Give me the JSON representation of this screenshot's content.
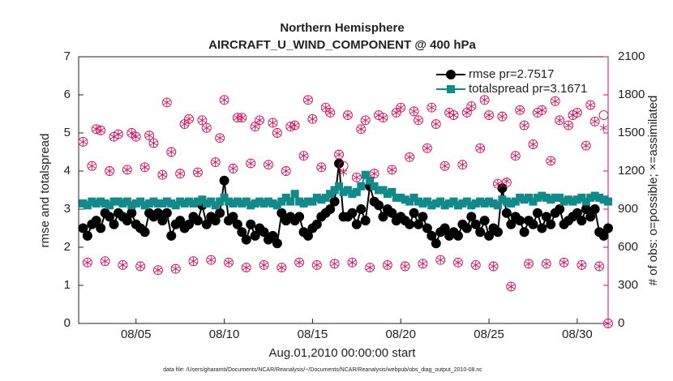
{
  "chart_data": {
    "type": "scatter",
    "title": "Northern Hemisphere",
    "subtitle": "AIRCRAFT_U_WIND_COMPONENT @ 400 hPa",
    "xlabel": "Aug.01,2010 00:00:00 start",
    "ylabel": "rmse and totalspread",
    "y2label": "# of obs: o=possible; ×=assimilated",
    "footnote": "data file: /Users/gharamti/Documents/NCAR/Reanalysis/~/Documents/NCAR/Reanalysis/webpub/obs_diag_output_2010-08.nc",
    "legend": "top-right",
    "grid": false,
    "xlim": [
      0.75,
      30.75
    ],
    "xticks": [
      {
        "value": 4,
        "label": "08/05"
      },
      {
        "value": 9,
        "label": "08/10"
      },
      {
        "value": 14,
        "label": "08/15"
      },
      {
        "value": 19,
        "label": "08/20"
      },
      {
        "value": 24,
        "label": "08/25"
      },
      {
        "value": 29,
        "label": "08/30"
      }
    ],
    "ylim": [
      0,
      7
    ],
    "yticks": [
      0,
      1,
      2,
      3,
      4,
      5,
      6,
      7
    ],
    "y2lim": [
      0,
      2100
    ],
    "y2ticks": [
      0,
      300,
      600,
      900,
      1200,
      1500,
      1800,
      2100
    ],
    "y2color": "#cc0f5f",
    "x": [
      1,
      1.25,
      1.5,
      1.75,
      2,
      2.25,
      2.5,
      2.75,
      3,
      3.25,
      3.5,
      3.75,
      4,
      4.25,
      4.5,
      4.75,
      5,
      5.25,
      5.5,
      5.75,
      6,
      6.25,
      6.5,
      6.75,
      7,
      7.25,
      7.5,
      7.75,
      8,
      8.25,
      8.5,
      8.75,
      9,
      9.25,
      9.5,
      9.75,
      10,
      10.25,
      10.5,
      10.75,
      11,
      11.25,
      11.5,
      11.75,
      12,
      12.25,
      12.5,
      12.75,
      13,
      13.25,
      13.5,
      13.75,
      14,
      14.25,
      14.5,
      14.75,
      15,
      15.25,
      15.5,
      15.75,
      16,
      16.25,
      16.5,
      16.75,
      17,
      17.25,
      17.5,
      17.75,
      18,
      18.25,
      18.5,
      18.75,
      19,
      19.25,
      19.5,
      19.75,
      20,
      20.25,
      20.5,
      20.75,
      21,
      21.25,
      21.5,
      21.75,
      22,
      22.25,
      22.5,
      22.75,
      23,
      23.25,
      23.5,
      23.75,
      24,
      24.25,
      24.5,
      24.75,
      25,
      25.25,
      25.5,
      25.75,
      26,
      26.25,
      26.5,
      26.75,
      27,
      27.25,
      27.5,
      27.75,
      28,
      28.25,
      28.5,
      28.75,
      29,
      29.25,
      29.5,
      29.75,
      30,
      30.25,
      30.5,
      30.75
    ],
    "series": [
      {
        "name": "rmse pr=2.7517",
        "color": "#000000",
        "marker": "circle",
        "line": true,
        "values": [
          2.5,
          2.3,
          2.6,
          2.7,
          2.5,
          2.9,
          2.8,
          2.6,
          2.9,
          2.8,
          2.7,
          2.9,
          2.6,
          2.5,
          2.4,
          2.9,
          2.8,
          2.9,
          2.7,
          2.9,
          2.3,
          2.6,
          2.7,
          2.5,
          2.6,
          2.8,
          2.7,
          3.1,
          2.6,
          2.8,
          2.7,
          2.9,
          3.75,
          2.7,
          2.8,
          2.6,
          2.4,
          2.2,
          2.6,
          2.3,
          2.5,
          2.4,
          2.2,
          2.3,
          2.1,
          2.9,
          2.7,
          2.8,
          2.7,
          2.8,
          2.4,
          2.3,
          2.5,
          2.6,
          2.8,
          2.9,
          3.0,
          3.2,
          4.2,
          2.8,
          2.8,
          2.9,
          2.6,
          3.0,
          2.7,
          3.6,
          3.2,
          3.1,
          2.8,
          3.0,
          2.9,
          2.7,
          2.8,
          2.7,
          2.6,
          2.9,
          2.6,
          2.8,
          2.5,
          2.3,
          2.1,
          2.4,
          2.5,
          2.3,
          2.4,
          2.3,
          2.6,
          2.5,
          2.8,
          2.6,
          2.4,
          2.7,
          2.3,
          2.5,
          2.4,
          3.55,
          2.9,
          2.6,
          2.8,
          2.7,
          2.4,
          2.7,
          2.6,
          2.9,
          2.5,
          2.8,
          2.6,
          2.9,
          3.0,
          2.6,
          2.7,
          2.8,
          2.9,
          2.7,
          3.0,
          2.8,
          3.0,
          2.4,
          2.3,
          2.5
        ]
      },
      {
        "name": "totalspread pr=3.1671",
        "color": "#138a8a",
        "marker": "square",
        "line": true,
        "values": [
          3.15,
          3.1,
          3.2,
          3.15,
          3.2,
          3.15,
          3.1,
          3.2,
          3.2,
          3.15,
          3.2,
          3.1,
          3.15,
          3.2,
          3.1,
          3.15,
          3.2,
          3.15,
          3.15,
          3.2,
          3.15,
          3.1,
          3.2,
          3.15,
          3.2,
          3.15,
          3.2,
          3.25,
          3.15,
          3.2,
          3.1,
          3.2,
          3.3,
          3.2,
          3.15,
          3.2,
          3.15,
          3.2,
          3.1,
          3.15,
          3.2,
          3.15,
          3.2,
          3.15,
          3.1,
          3.2,
          3.3,
          3.2,
          3.4,
          3.2,
          3.15,
          3.2,
          3.2,
          3.3,
          3.25,
          3.3,
          3.4,
          3.5,
          3.6,
          3.45,
          3.5,
          3.4,
          3.45,
          3.6,
          3.9,
          3.75,
          3.6,
          3.5,
          3.5,
          3.4,
          3.45,
          3.3,
          3.3,
          3.25,
          3.2,
          3.3,
          3.2,
          3.15,
          3.2,
          3.1,
          3.15,
          3.2,
          3.1,
          3.15,
          3.2,
          3.1,
          3.15,
          3.2,
          3.1,
          3.15,
          3.2,
          3.15,
          3.2,
          3.15,
          3.1,
          3.25,
          3.2,
          3.15,
          3.2,
          3.3,
          3.25,
          3.3,
          3.2,
          3.3,
          3.35,
          3.3,
          3.25,
          3.3,
          3.3,
          3.2,
          3.25,
          3.2,
          3.25,
          3.3,
          3.2,
          3.3,
          3.35,
          3.3,
          3.25,
          3.2
        ]
      },
      {
        "color": "#cc0f5f",
        "marker": "circle-open",
        "line": false,
        "axis": "y2",
        "values": [
          1430,
          480,
          1240,
          1530,
          1520,
          490,
          1200,
          1470,
          1490,
          460,
          1210,
          1500,
          1470,
          450,
          1230,
          1480,
          1420,
          420,
          1170,
          1740,
          1350,
          430,
          1180,
          1570,
          1610,
          490,
          1190,
          1600,
          1540,
          500,
          1270,
          1460,
          1760,
          480,
          1220,
          1620,
          1620,
          440,
          1260,
          1550,
          1600,
          460,
          1250,
          1580,
          1500,
          440,
          1200,
          1550,
          1560,
          480,
          1320,
          1760,
          1610,
          460,
          1230,
          1700,
          1660,
          470,
          1330,
          1240,
          1640,
          480,
          1150,
          1530,
          1600,
          440,
          1180,
          1640,
          1620,
          460,
          1210,
          1660,
          1700,
          450,
          1310,
          1670,
          1600,
          470,
          1380,
          1700,
          1570,
          500,
          1240,
          1660,
          1640,
          480,
          1250,
          1660,
          1710,
          460,
          1380,
          1760,
          1640,
          450,
          1100,
          1630,
          1110,
          290,
          1320,
          1680,
          1560,
          470,
          1410,
          1660,
          1680,
          470,
          1280,
          1750,
          1600,
          480,
          1560,
          1640,
          1660,
          460,
          1400,
          1720,
          1590,
          450,
          1640,
          0
        ]
      },
      {
        "color": "#cc0f5f",
        "marker": "asterisk",
        "line": false,
        "axis": "y2",
        "values": [
          1430,
          480,
          1240,
          1530,
          1520,
          490,
          1200,
          1470,
          1490,
          460,
          1210,
          1500,
          1470,
          450,
          1230,
          1480,
          1420,
          420,
          1170,
          1740,
          1350,
          430,
          1180,
          1570,
          1610,
          490,
          1190,
          1600,
          1540,
          500,
          1270,
          1460,
          1760,
          480,
          1220,
          1620,
          1620,
          440,
          1260,
          1550,
          1600,
          460,
          1250,
          1580,
          1500,
          440,
          1200,
          1550,
          1560,
          480,
          1320,
          1760,
          1610,
          460,
          1230,
          1700,
          1660,
          470,
          1330,
          1190,
          1640,
          480,
          1150,
          1530,
          1600,
          440,
          1180,
          1640,
          1620,
          460,
          1210,
          1660,
          1700,
          450,
          1310,
          1670,
          1600,
          470,
          1380,
          1700,
          1570,
          500,
          1240,
          1660,
          1640,
          480,
          1250,
          1660,
          1710,
          460,
          1380,
          1760,
          1640,
          450,
          1100,
          1630,
          1120,
          290,
          1320,
          1680,
          1560,
          470,
          1410,
          1660,
          1680,
          470,
          1280,
          1750,
          1600,
          480,
          1560,
          1640,
          1660,
          460,
          1400,
          1720,
          1590,
          450,
          1540,
          0
        ]
      }
    ]
  }
}
